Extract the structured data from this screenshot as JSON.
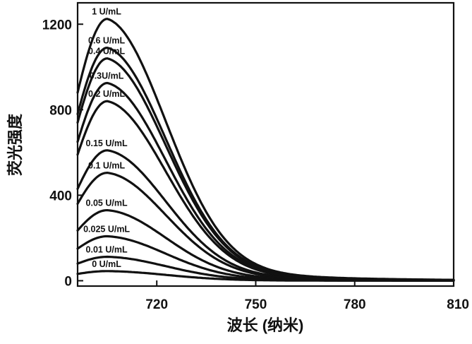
{
  "chart_data": {
    "type": "line",
    "xlabel": "波长 (纳米)",
    "ylabel": "荧光强度",
    "xlim": [
      696,
      810
    ],
    "ylim": [
      -25,
      1300
    ],
    "x_ticks": [
      720,
      750,
      780,
      810
    ],
    "y_ticks": [
      0,
      400,
      800,
      1200
    ],
    "grid": false,
    "series": [
      {
        "name": "1 U/mL",
        "peak_x": 705,
        "values_y_at": {
          "696": 880,
          "705": 1225,
          "710": 1140,
          "720": 780,
          "730": 420,
          "750": 130,
          "780": 25,
          "810": 5
        }
      },
      {
        "name": "0.6 U/mL",
        "peak_x": 705,
        "values_y_at": {
          "696": 780,
          "705": 1090,
          "720": 700,
          "750": 118,
          "780": 22,
          "810": 4
        }
      },
      {
        "name": "0.4 U/mL",
        "peak_x": 705,
        "values_y_at": {
          "696": 740,
          "705": 1040,
          "720": 670,
          "750": 112,
          "780": 21,
          "810": 4
        }
      },
      {
        "name": "0.3U/mL",
        "peak_x": 705,
        "values_y_at": {
          "696": 650,
          "705": 925,
          "720": 595,
          "750": 100,
          "780": 19,
          "810": 3
        }
      },
      {
        "name": "0.2 U/mL",
        "peak_x": 705,
        "values_y_at": {
          "696": 590,
          "705": 840,
          "720": 540,
          "750": 92,
          "780": 17,
          "810": 3
        }
      },
      {
        "name": "0.15 U/mL",
        "peak_x": 705,
        "values_y_at": {
          "696": 430,
          "705": 610,
          "720": 392,
          "750": 68,
          "780": 12,
          "810": 2
        }
      },
      {
        "name": "0.1 U/mL",
        "peak_x": 705,
        "values_y_at": {
          "696": 360,
          "705": 505,
          "720": 325,
          "750": 56,
          "780": 10,
          "810": 2
        }
      },
      {
        "name": "0.05 U/mL",
        "peak_x": 705,
        "values_y_at": {
          "696": 235,
          "705": 330,
          "720": 213,
          "750": 37,
          "780": 7,
          "810": 1
        }
      },
      {
        "name": "0.025 U/mL",
        "peak_x": 705,
        "values_y_at": {
          "696": 150,
          "705": 208,
          "720": 135,
          "750": 24,
          "780": 5,
          "810": 1
        }
      },
      {
        "name": "0.01 U/mL",
        "peak_x": 705,
        "values_y_at": {
          "696": 80,
          "705": 112,
          "720": 73,
          "750": 14,
          "780": 3,
          "810": 0
        }
      },
      {
        "name": "0 U/mL",
        "peak_x": 705,
        "values_y_at": {
          "696": 32,
          "705": 45,
          "720": 30,
          "750": 6,
          "780": 1,
          "810": 0
        }
      }
    ]
  }
}
